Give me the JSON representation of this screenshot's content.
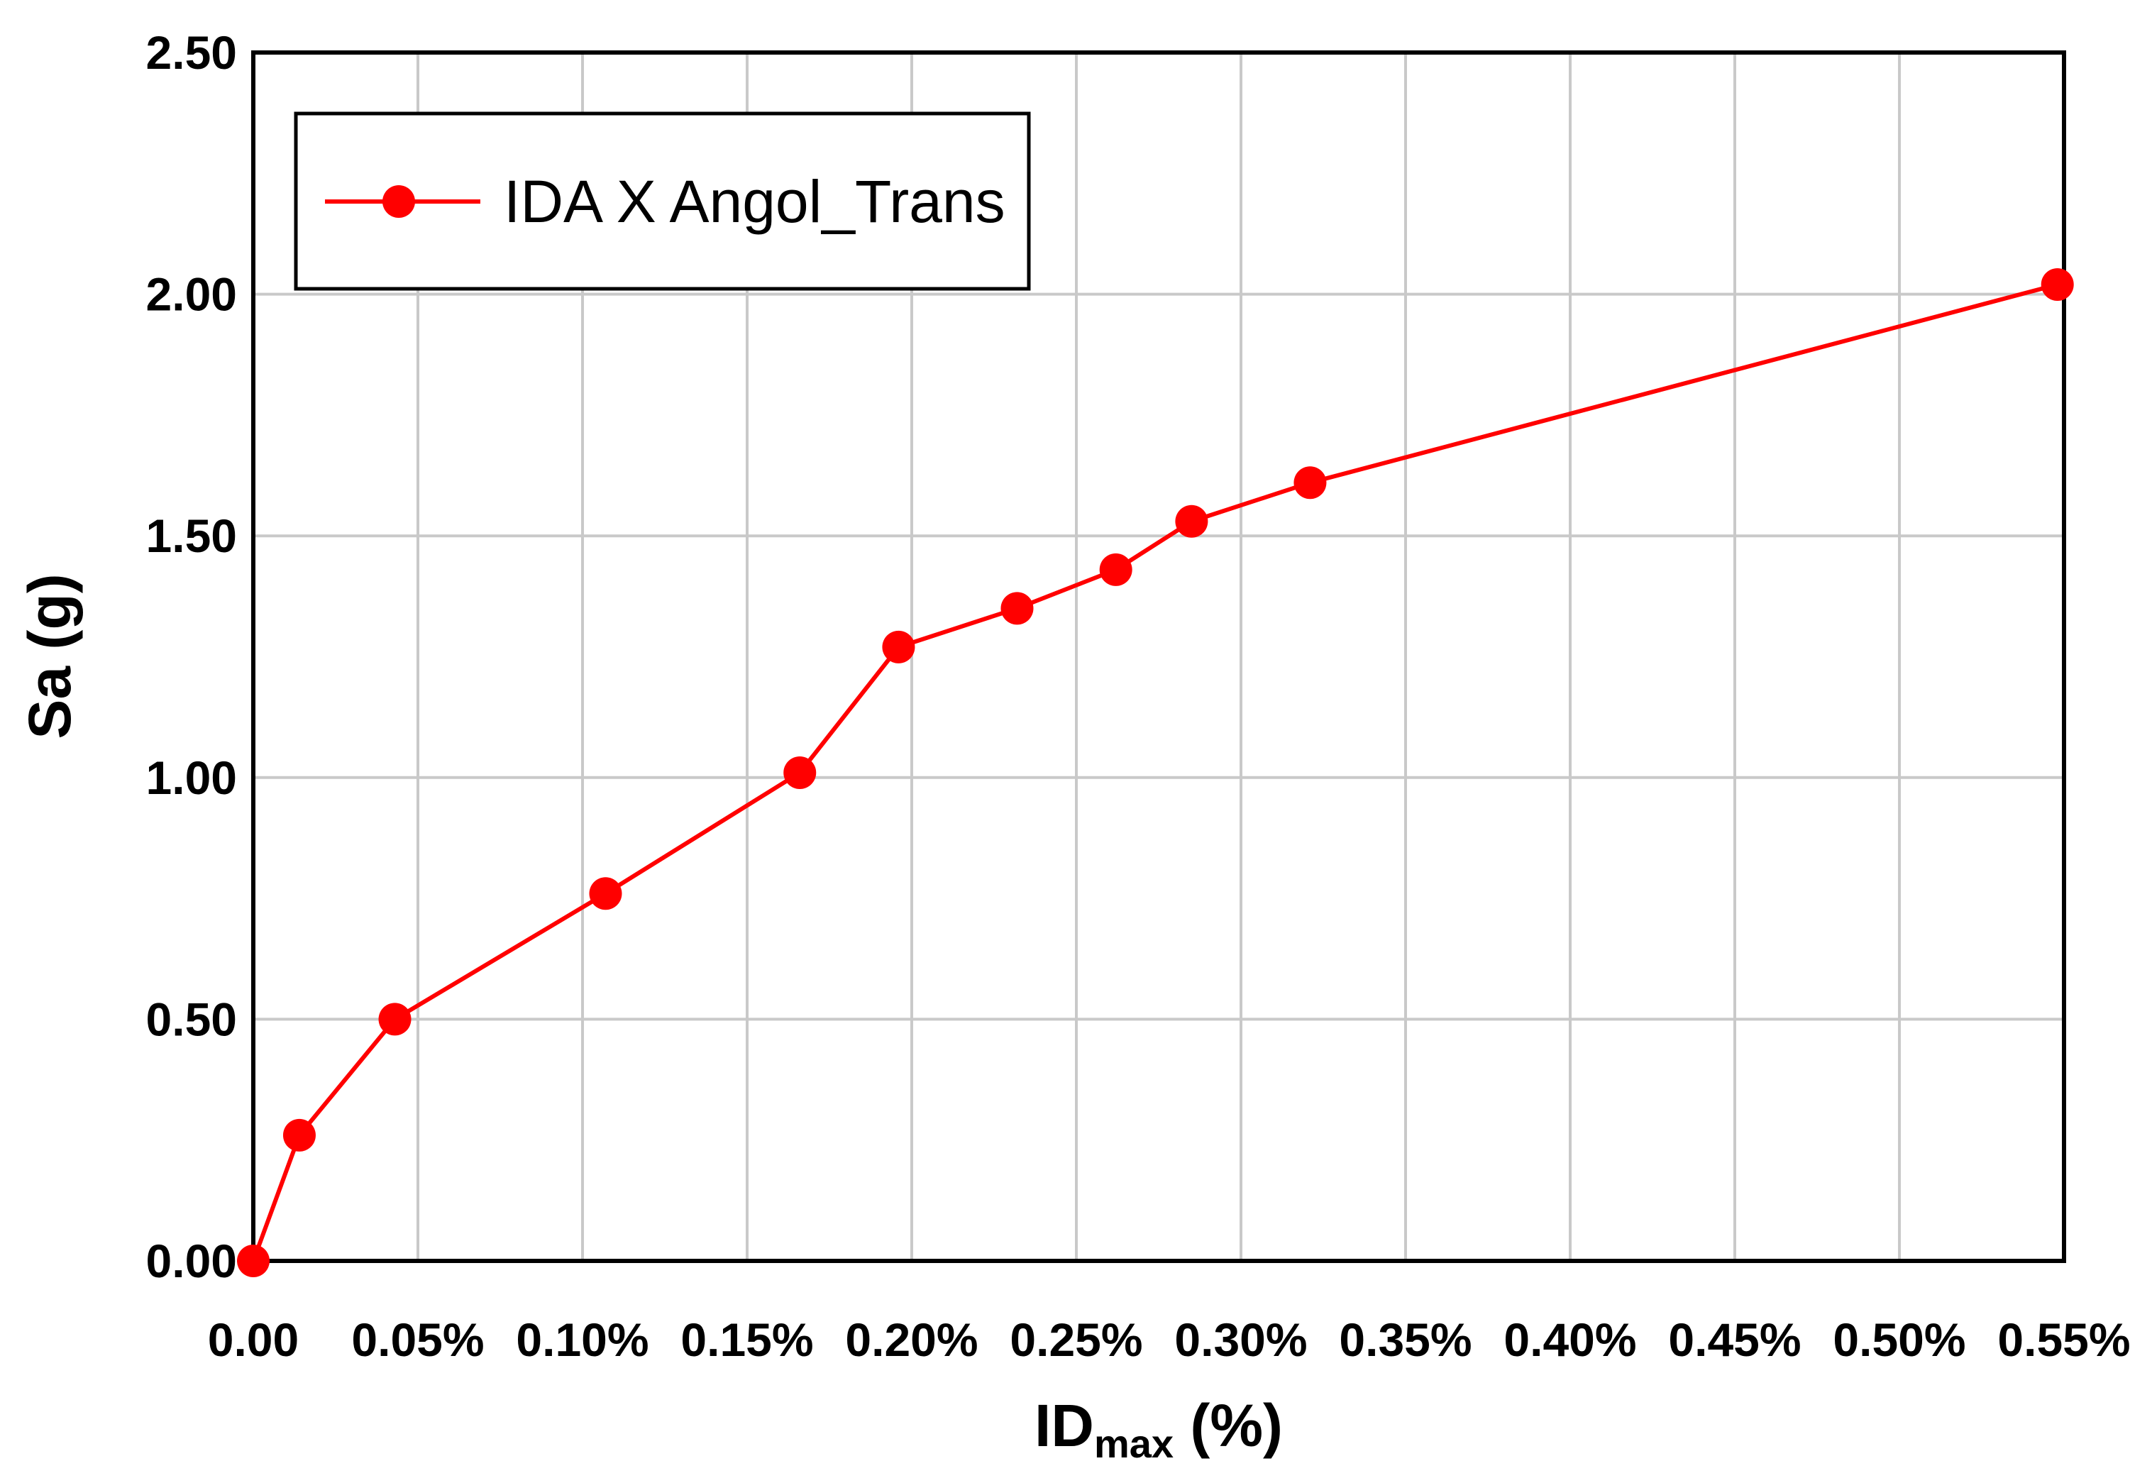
{
  "figure": {
    "background": "#FFFFFF"
  },
  "chart_data": {
    "type": "line",
    "title": "",
    "series": [
      {
        "name": "IDA X Angol_Trans",
        "color": "#FF0000",
        "marker": "circle",
        "x": [
          0.0,
          0.014,
          0.043,
          0.107,
          0.166,
          0.196,
          0.232,
          0.262,
          0.285,
          0.321,
          0.548
        ],
        "y": [
          0.0,
          0.26,
          0.5,
          0.76,
          1.01,
          1.27,
          1.35,
          1.43,
          1.53,
          1.61,
          2.02
        ]
      }
    ],
    "xlabel": {
      "main": "ID",
      "sub": "max",
      "unit": " (%)"
    },
    "ylabel": "Sa (g)",
    "xlim": [
      0,
      0.55
    ],
    "ylim": [
      0,
      2.5
    ],
    "x_ticks": [
      {
        "v": 0.0,
        "label": "0.00"
      },
      {
        "v": 0.05,
        "label": "0.05%"
      },
      {
        "v": 0.1,
        "label": "0.10%"
      },
      {
        "v": 0.15,
        "label": "0.15%"
      },
      {
        "v": 0.2,
        "label": "0.20%"
      },
      {
        "v": 0.25,
        "label": "0.25%"
      },
      {
        "v": 0.3,
        "label": "0.30%"
      },
      {
        "v": 0.35,
        "label": "0.35%"
      },
      {
        "v": 0.4,
        "label": "0.40%"
      },
      {
        "v": 0.45,
        "label": "0.45%"
      },
      {
        "v": 0.5,
        "label": "0.50%"
      },
      {
        "v": 0.55,
        "label": "0.55%"
      }
    ],
    "y_ticks": [
      {
        "v": 0.0,
        "label": "0.00"
      },
      {
        "v": 0.5,
        "label": "0.50"
      },
      {
        "v": 1.0,
        "label": "1.00"
      },
      {
        "v": 1.5,
        "label": "1.50"
      },
      {
        "v": 2.0,
        "label": "2.00"
      },
      {
        "v": 2.5,
        "label": "2.50"
      }
    ],
    "grid": true,
    "legend_position": "top-left"
  },
  "styles": {
    "grid_color": "#C9C9C9",
    "frame_color": "#000000",
    "text_color": "#000000",
    "series_color": "#FF0000",
    "legend_border_color": "#000000",
    "legend_fill": "#FFFFFF"
  }
}
